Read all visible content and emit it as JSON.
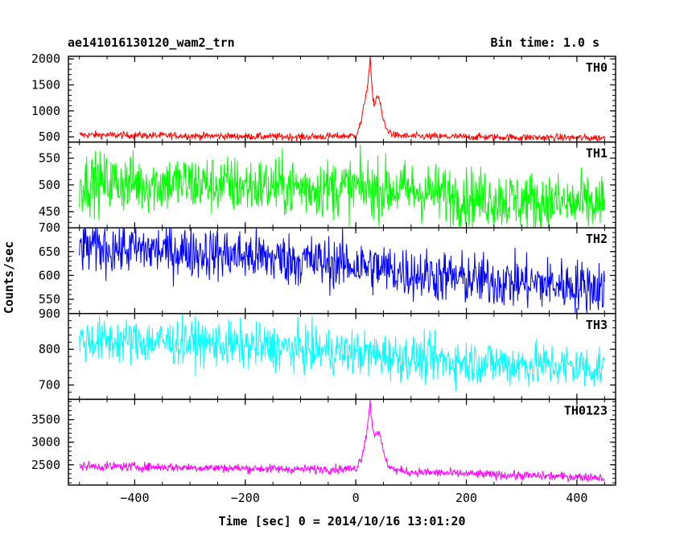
{
  "header": {
    "title_left": "ae141016130120_wam2_trn",
    "title_right": "Bin time: 1.0 s"
  },
  "chart_data": {
    "type": "line",
    "xlabel": "Time [sec] 0 = 2014/10/16 13:01:20",
    "ylabel": "Counts/sec",
    "xlim": [
      -520,
      470
    ],
    "xticks": [
      -400,
      -200,
      0,
      200,
      400
    ],
    "xtick_labels": [
      "−400",
      "−200",
      "0",
      "200",
      "400"
    ],
    "grid": false,
    "panels": [
      {
        "name": "TH0",
        "color": "#ff0000",
        "ylim": [
          400,
          2050
        ],
        "yticks": [
          500,
          1000,
          1500,
          2000
        ],
        "profile": {
          "x": [
            -500,
            -300,
            -100,
            0,
            10,
            18,
            22,
            26,
            30,
            34,
            38,
            42,
            48,
            55,
            70,
            100,
            200,
            300,
            450
          ],
          "y": [
            540,
            520,
            500,
            520,
            800,
            1300,
            1550,
            2000,
            1300,
            1100,
            1300,
            1250,
            900,
            650,
            530,
            510,
            500,
            490,
            480
          ]
        },
        "noise": 35
      },
      {
        "name": "TH1",
        "color": "#00ff00",
        "ylim": [
          420,
          580
        ],
        "yticks": [
          450,
          500,
          550
        ],
        "profile": {
          "x": [
            -500,
            -300,
            -100,
            0,
            100,
            200,
            300,
            450
          ],
          "y": [
            505,
            502,
            495,
            495,
            490,
            478,
            470,
            462
          ]
        },
        "noise": 28
      },
      {
        "name": "TH2",
        "color": "#0000ff",
        "ylim": [
          520,
          700
        ],
        "yticks": [
          550,
          600,
          650,
          700
        ],
        "profile": {
          "x": [
            -500,
            -300,
            -100,
            0,
            100,
            200,
            300,
            450
          ],
          "y": [
            660,
            650,
            632,
            622,
            605,
            592,
            585,
            575
          ]
        },
        "noise": 28
      },
      {
        "name": "TH3",
        "color": "#00ffff",
        "ylim": [
          660,
          900
        ],
        "yticks": [
          700,
          800,
          900
        ],
        "profile": {
          "x": [
            -500,
            -300,
            -100,
            0,
            100,
            200,
            300,
            450
          ],
          "y": [
            825,
            820,
            800,
            790,
            775,
            765,
            758,
            748
          ]
        },
        "noise": 32
      },
      {
        "name": "TH0123",
        "color": "#ff00ff",
        "ylim": [
          2050,
          3950
        ],
        "yticks": [
          2500,
          3000,
          3500
        ],
        "profile": {
          "x": [
            -500,
            -300,
            -100,
            0,
            10,
            18,
            22,
            26,
            30,
            34,
            38,
            42,
            48,
            55,
            70,
            100,
            200,
            300,
            450
          ],
          "y": [
            2470,
            2440,
            2400,
            2410,
            2650,
            3100,
            3450,
            3900,
            3350,
            3150,
            3250,
            3200,
            2900,
            2550,
            2380,
            2340,
            2300,
            2260,
            2220
          ]
        },
        "noise": 50
      }
    ]
  }
}
